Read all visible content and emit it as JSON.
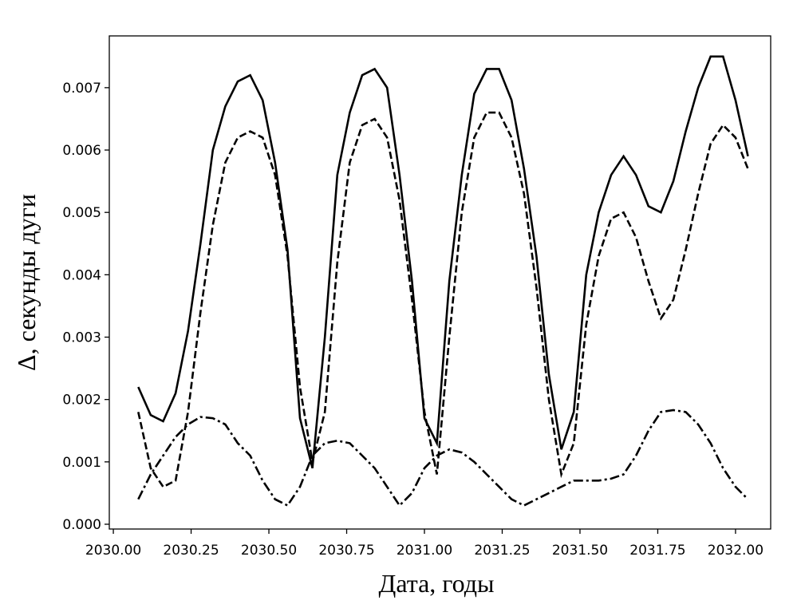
{
  "chart_data": {
    "type": "line",
    "xlabel": "Дата, годы",
    "ylabel": "Δ, секунды дуги",
    "x": [
      2030.08,
      2030.12,
      2030.16,
      2030.2,
      2030.24,
      2030.28,
      2030.32,
      2030.36,
      2030.4,
      2030.44,
      2030.48,
      2030.52,
      2030.56,
      2030.6,
      2030.64,
      2030.68,
      2030.72,
      2030.76,
      2030.8,
      2030.84,
      2030.88,
      2030.92,
      2030.96,
      2031.0,
      2031.04,
      2031.08,
      2031.12,
      2031.16,
      2031.2,
      2031.24,
      2031.28,
      2031.32,
      2031.36,
      2031.4,
      2031.44,
      2031.48,
      2031.52,
      2031.56,
      2031.6,
      2031.64,
      2031.68,
      2031.72,
      2031.76,
      2031.8,
      2031.84,
      2031.88,
      2031.92,
      2031.96,
      2032.0,
      2032.04
    ],
    "series": [
      {
        "color": "#000000",
        "linestyle": "solid",
        "values": [
          0.0022,
          0.00175,
          0.00165,
          0.0021,
          0.0031,
          0.0045,
          0.006,
          0.0067,
          0.0071,
          0.0072,
          0.0068,
          0.0058,
          0.0044,
          0.0017,
          0.0009,
          0.003,
          0.0056,
          0.0066,
          0.0072,
          0.0073,
          0.007,
          0.0056,
          0.0039,
          0.0017,
          0.0013,
          0.0039,
          0.0056,
          0.0069,
          0.0073,
          0.0073,
          0.0068,
          0.0057,
          0.0043,
          0.0024,
          0.0012,
          0.0018,
          0.004,
          0.005,
          0.0056,
          0.0059,
          0.0056,
          0.0051,
          0.005,
          0.0055,
          0.0063,
          0.007,
          0.0075,
          0.0075,
          0.0068,
          0.0059
        ]
      },
      {
        "color": "#000000",
        "linestyle": "dashed",
        "values": [
          0.0018,
          0.0009,
          0.0006,
          0.0007,
          0.0018,
          0.0034,
          0.0048,
          0.0058,
          0.0062,
          0.0063,
          0.0062,
          0.0056,
          0.0043,
          0.0022,
          0.001,
          0.0018,
          0.0042,
          0.0058,
          0.0064,
          0.0065,
          0.0062,
          0.0052,
          0.0036,
          0.0018,
          0.0008,
          0.003,
          0.005,
          0.0062,
          0.0066,
          0.0066,
          0.0062,
          0.0053,
          0.0038,
          0.002,
          0.0008,
          0.0013,
          0.0032,
          0.0043,
          0.0049,
          0.005,
          0.0046,
          0.0039,
          0.0033,
          0.0036,
          0.0044,
          0.0053,
          0.0061,
          0.0064,
          0.0062,
          0.0057
        ]
      },
      {
        "color": "#000000",
        "linestyle": "dashdot",
        "values": [
          0.0004,
          0.0008,
          0.0011,
          0.0014,
          0.0016,
          0.00172,
          0.0017,
          0.0016,
          0.0013,
          0.0011,
          0.0007,
          0.0004,
          0.0003,
          0.0006,
          0.0011,
          0.0013,
          0.00134,
          0.0013,
          0.0011,
          0.0009,
          0.0006,
          0.0003,
          0.0005,
          0.0009,
          0.0011,
          0.0012,
          0.00115,
          0.001,
          0.0008,
          0.0006,
          0.0004,
          0.0003,
          0.0004,
          0.0005,
          0.0006,
          0.0007,
          0.0007,
          0.0007,
          0.00073,
          0.0008,
          0.0011,
          0.0015,
          0.0018,
          0.00183,
          0.0018,
          0.0016,
          0.0013,
          0.0009,
          0.0006,
          0.0004
        ]
      }
    ],
    "xlim": [
      2029.987,
      2032.113
    ],
    "ylim": [
      -7.68e-05,
      0.00783
    ],
    "xticks": [
      {
        "value": 2030,
        "label": "2030.00"
      },
      {
        "value": 2030.25,
        "label": "2030.25"
      },
      {
        "value": 2030.5,
        "label": "2030.50"
      },
      {
        "value": 2030.75,
        "label": "2030.75"
      },
      {
        "value": 2031,
        "label": "2031.00"
      },
      {
        "value": 2031.25,
        "label": "2031.25"
      },
      {
        "value": 2031.5,
        "label": "2031.50"
      },
      {
        "value": 2031.75,
        "label": "2031.75"
      },
      {
        "value": 2032,
        "label": "2032.00"
      }
    ],
    "yticks": [
      {
        "value": 0,
        "label": "0.000"
      },
      {
        "value": 0.001,
        "label": "0.001"
      },
      {
        "value": 0.002,
        "label": "0.002"
      },
      {
        "value": 0.003,
        "label": "0.003"
      },
      {
        "value": 0.004,
        "label": "0.004"
      },
      {
        "value": 0.005,
        "label": "0.005"
      },
      {
        "value": 0.006,
        "label": "0.006"
      },
      {
        "value": 0.007,
        "label": "0.007"
      }
    ],
    "grid": false
  }
}
